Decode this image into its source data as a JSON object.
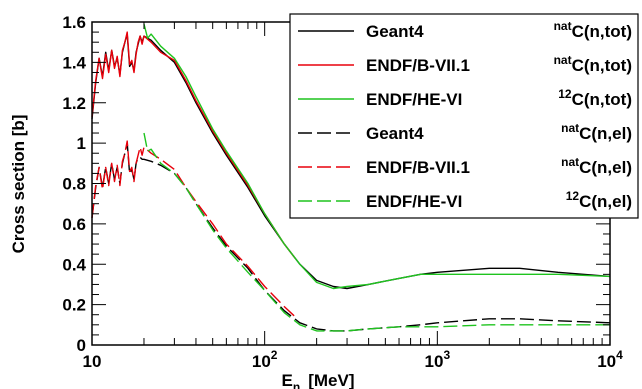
{
  "chart_data": {
    "type": "line",
    "xlabel": "E",
    "xlabel_sub": "n",
    "xlabel_unit": "[MeV]",
    "ylabel": "Cross section [b]",
    "xscale": "log",
    "xlim": [
      10,
      10000
    ],
    "ylim": [
      0,
      1.6
    ],
    "grid": false,
    "legend_position": "top-right",
    "y_ticks": [
      "0",
      "0.2",
      "0.4",
      "0.6",
      "0.8",
      "1",
      "1.2",
      "1.4",
      "1.6"
    ],
    "x_ticks": [
      {
        "base": "10",
        "exp": ""
      },
      {
        "base": "10",
        "exp": "2"
      },
      {
        "base": "10",
        "exp": "3"
      },
      {
        "base": "10",
        "exp": "4"
      }
    ],
    "colors": {
      "black": "#000000",
      "red": "#e8000b",
      "green": "#1fc41f"
    },
    "series": [
      {
        "name": "Geant4",
        "reaction_sup": "nat",
        "reaction": "C(n,tot)",
        "color": "#000000",
        "dash": "solid",
        "x": [
          10,
          10.5,
          11,
          11.5,
          12,
          12.5,
          13,
          13.5,
          14,
          14.5,
          15,
          15.5,
          16,
          16.5,
          17,
          17.5,
          18,
          18.5,
          19,
          19.5,
          20,
          22,
          25,
          30,
          35,
          40,
          50,
          60,
          80,
          100,
          130,
          160,
          200,
          250,
          300,
          400,
          600,
          800,
          1000,
          2000,
          3000,
          5000,
          10000
        ],
        "y": [
          1.12,
          1.3,
          1.42,
          1.33,
          1.45,
          1.36,
          1.46,
          1.38,
          1.42,
          1.34,
          1.45,
          1.5,
          1.54,
          1.38,
          1.4,
          1.36,
          1.45,
          1.49,
          1.53,
          1.5,
          1.53,
          1.51,
          1.46,
          1.4,
          1.3,
          1.2,
          1.05,
          0.94,
          0.78,
          0.64,
          0.5,
          0.4,
          0.32,
          0.29,
          0.28,
          0.3,
          0.33,
          0.35,
          0.36,
          0.38,
          0.38,
          0.36,
          0.34
        ]
      },
      {
        "name": "ENDF/B-VII.1",
        "reaction_sup": "nat",
        "reaction": "C(n,tot)",
        "color": "#e8000b",
        "dash": "solid",
        "x": [
          10,
          10.5,
          11,
          11.5,
          12,
          12.5,
          13,
          13.5,
          14,
          14.5,
          15,
          15.5,
          16,
          16.5,
          17,
          17.5,
          18,
          18.5,
          19,
          19.5,
          20,
          22,
          25,
          30,
          35,
          40,
          50,
          60,
          80,
          100,
          130,
          150
        ],
        "y": [
          1.13,
          1.31,
          1.42,
          1.32,
          1.44,
          1.35,
          1.46,
          1.37,
          1.43,
          1.33,
          1.46,
          1.5,
          1.55,
          1.39,
          1.41,
          1.35,
          1.44,
          1.5,
          1.53,
          1.49,
          1.53,
          1.5,
          1.45,
          1.41,
          1.31,
          1.21,
          1.06,
          0.95,
          0.79,
          0.65,
          0.5,
          0.43
        ]
      },
      {
        "name": "ENDF/HE-VI",
        "reaction_sup": "12",
        "reaction": "C(n,tot)",
        "color": "#1fc41f",
        "dash": "solid",
        "x": [
          20,
          21,
          22,
          25,
          30,
          35,
          40,
          50,
          60,
          80,
          100,
          130,
          160,
          200,
          250,
          300,
          400,
          600,
          800,
          1000,
          2000,
          3000,
          5000,
          10000
        ],
        "y": [
          1.59,
          1.52,
          1.54,
          1.48,
          1.42,
          1.33,
          1.23,
          1.07,
          0.96,
          0.8,
          0.65,
          0.5,
          0.4,
          0.31,
          0.28,
          0.29,
          0.3,
          0.33,
          0.35,
          0.35,
          0.35,
          0.35,
          0.35,
          0.34
        ]
      },
      {
        "name": "Geant4",
        "reaction_sup": "nat",
        "reaction": "C(n,el)",
        "color": "#000000",
        "dash": "dashed",
        "x": [
          10,
          10.5,
          11,
          11.5,
          12,
          12.5,
          13,
          13.5,
          14,
          14.5,
          15,
          15.5,
          16,
          16.5,
          17,
          17.5,
          18,
          18.5,
          19,
          19.5,
          20,
          22,
          25,
          30,
          35,
          40,
          50,
          60,
          80,
          100,
          130,
          160,
          200,
          250,
          300,
          400,
          600,
          800,
          1000,
          2000,
          3000,
          5000,
          10000
        ],
        "y": [
          0.63,
          0.78,
          0.88,
          0.78,
          0.88,
          0.8,
          0.9,
          0.82,
          0.88,
          0.8,
          0.9,
          0.95,
          1.0,
          0.85,
          0.87,
          0.82,
          0.9,
          0.93,
          0.93,
          0.92,
          0.92,
          0.91,
          0.89,
          0.85,
          0.78,
          0.7,
          0.58,
          0.49,
          0.38,
          0.27,
          0.17,
          0.11,
          0.08,
          0.07,
          0.07,
          0.08,
          0.09,
          0.1,
          0.11,
          0.13,
          0.13,
          0.12,
          0.11
        ]
      },
      {
        "name": "ENDF/B-VII.1",
        "reaction_sup": "nat",
        "reaction": "C(n,el)",
        "color": "#e8000b",
        "dash": "dashed",
        "x": [
          10,
          10.5,
          11,
          11.5,
          12,
          12.5,
          13,
          13.5,
          14,
          14.5,
          15,
          15.5,
          16,
          16.5,
          17,
          17.5,
          18,
          18.5,
          19,
          19.5,
          20,
          22,
          25,
          30,
          35,
          40,
          50,
          60,
          80,
          100,
          130,
          150
        ],
        "y": [
          0.63,
          0.79,
          0.88,
          0.77,
          0.88,
          0.79,
          0.9,
          0.81,
          0.89,
          0.79,
          0.91,
          0.95,
          1.01,
          0.86,
          0.88,
          0.81,
          0.9,
          0.94,
          0.98,
          0.94,
          0.98,
          0.95,
          0.92,
          0.87,
          0.78,
          0.71,
          0.6,
          0.5,
          0.39,
          0.29,
          0.19,
          0.14
        ]
      },
      {
        "name": "ENDF/HE-VI",
        "reaction_sup": "12",
        "reaction": "C(n,el)",
        "color": "#1fc41f",
        "dash": "dashed",
        "x": [
          20,
          21,
          22,
          25,
          30,
          35,
          40,
          50,
          60,
          80,
          100,
          130,
          160,
          200,
          250,
          300,
          400,
          600,
          800,
          1000,
          2000,
          3000,
          5000,
          10000
        ],
        "y": [
          1.05,
          0.96,
          0.97,
          0.9,
          0.85,
          0.78,
          0.7,
          0.57,
          0.48,
          0.36,
          0.27,
          0.16,
          0.1,
          0.07,
          0.07,
          0.07,
          0.08,
          0.09,
          0.09,
          0.09,
          0.1,
          0.1,
          0.1,
          0.1
        ]
      }
    ]
  }
}
